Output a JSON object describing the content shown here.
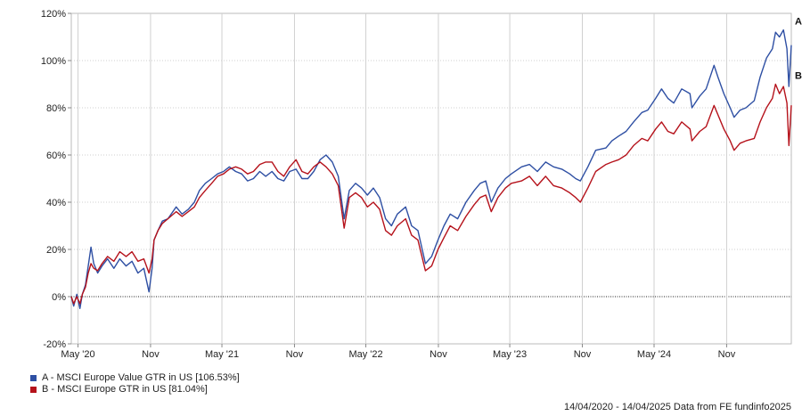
{
  "chart_data": {
    "type": "line",
    "xlabel": "",
    "ylabel": "",
    "ylim": [
      -20,
      120
    ],
    "y_ticks": [
      -20,
      0,
      20,
      40,
      60,
      80,
      100,
      120
    ],
    "y_tick_labels": [
      "-20%",
      "0%",
      "20%",
      "40%",
      "60%",
      "80%",
      "100%",
      "120%"
    ],
    "x_range": [
      "2020-04-14",
      "2025-04-14"
    ],
    "x_ticks": [
      {
        "date": "2020-05-01",
        "label": "May '20"
      },
      {
        "date": "2020-11-01",
        "label": "Nov"
      },
      {
        "date": "2021-05-01",
        "label": "May '21"
      },
      {
        "date": "2021-11-01",
        "label": "Nov"
      },
      {
        "date": "2022-05-01",
        "label": "May '22"
      },
      {
        "date": "2022-11-01",
        "label": "Nov"
      },
      {
        "date": "2023-05-01",
        "label": "May '23"
      },
      {
        "date": "2023-11-01",
        "label": "Nov"
      },
      {
        "date": "2024-05-01",
        "label": "May '24"
      },
      {
        "date": "2024-11-01",
        "label": "Nov"
      }
    ],
    "grid": true,
    "zero_line": true,
    "legend_position": "bottom-left",
    "series": [
      {
        "name": "A - MSCI Europe Value GTR in US [106.53%]",
        "end_label": "A",
        "color": "#2e4fa3",
        "points": [
          [
            "2020-04-14",
            0
          ],
          [
            "2020-04-20",
            -4
          ],
          [
            "2020-04-28",
            1
          ],
          [
            "2020-05-06",
            -5
          ],
          [
            "2020-05-12",
            1
          ],
          [
            "2020-05-20",
            5
          ],
          [
            "2020-05-27",
            13
          ],
          [
            "2020-06-03",
            21
          ],
          [
            "2020-06-10",
            14
          ],
          [
            "2020-06-20",
            10
          ],
          [
            "2020-07-01",
            13
          ],
          [
            "2020-07-15",
            16
          ],
          [
            "2020-07-31",
            12
          ],
          [
            "2020-08-15",
            16
          ],
          [
            "2020-08-31",
            13
          ],
          [
            "2020-09-15",
            15
          ],
          [
            "2020-09-30",
            10
          ],
          [
            "2020-10-15",
            12
          ],
          [
            "2020-10-28",
            2
          ],
          [
            "2020-11-05",
            12
          ],
          [
            "2020-11-10",
            24
          ],
          [
            "2020-11-20",
            28
          ],
          [
            "2020-12-01",
            32
          ],
          [
            "2020-12-15",
            33
          ],
          [
            "2021-01-05",
            38
          ],
          [
            "2021-01-20",
            35
          ],
          [
            "2021-02-05",
            37
          ],
          [
            "2021-02-20",
            40
          ],
          [
            "2021-03-05",
            45
          ],
          [
            "2021-03-20",
            48
          ],
          [
            "2021-04-05",
            50
          ],
          [
            "2021-04-20",
            52
          ],
          [
            "2021-05-05",
            53
          ],
          [
            "2021-05-20",
            55
          ],
          [
            "2021-06-05",
            53
          ],
          [
            "2021-06-20",
            52
          ],
          [
            "2021-07-05",
            49
          ],
          [
            "2021-07-20",
            50
          ],
          [
            "2021-08-05",
            53
          ],
          [
            "2021-08-20",
            51
          ],
          [
            "2021-09-05",
            53
          ],
          [
            "2021-09-20",
            50
          ],
          [
            "2021-10-05",
            49
          ],
          [
            "2021-10-20",
            53
          ],
          [
            "2021-11-05",
            54
          ],
          [
            "2021-11-20",
            50
          ],
          [
            "2021-12-05",
            50
          ],
          [
            "2021-12-20",
            53
          ],
          [
            "2022-01-05",
            58
          ],
          [
            "2022-01-20",
            60
          ],
          [
            "2022-02-05",
            57
          ],
          [
            "2022-02-20",
            51
          ],
          [
            "2022-03-07",
            33
          ],
          [
            "2022-03-20",
            45
          ],
          [
            "2022-04-05",
            48
          ],
          [
            "2022-04-20",
            46
          ],
          [
            "2022-05-05",
            43
          ],
          [
            "2022-05-20",
            46
          ],
          [
            "2022-06-05",
            42
          ],
          [
            "2022-06-20",
            33
          ],
          [
            "2022-07-05",
            30
          ],
          [
            "2022-07-20",
            35
          ],
          [
            "2022-08-10",
            38
          ],
          [
            "2022-08-25",
            30
          ],
          [
            "2022-09-10",
            28
          ],
          [
            "2022-09-29",
            14
          ],
          [
            "2022-10-15",
            17
          ],
          [
            "2022-10-31",
            24
          ],
          [
            "2022-11-15",
            30
          ],
          [
            "2022-12-01",
            35
          ],
          [
            "2022-12-20",
            33
          ],
          [
            "2023-01-10",
            40
          ],
          [
            "2023-01-31",
            45
          ],
          [
            "2023-02-15",
            48
          ],
          [
            "2023-03-01",
            49
          ],
          [
            "2023-03-15",
            40
          ],
          [
            "2023-04-01",
            46
          ],
          [
            "2023-04-20",
            50
          ],
          [
            "2023-05-05",
            52
          ],
          [
            "2023-05-31",
            55
          ],
          [
            "2023-06-20",
            56
          ],
          [
            "2023-07-10",
            53
          ],
          [
            "2023-07-31",
            57
          ],
          [
            "2023-08-20",
            55
          ],
          [
            "2023-09-10",
            54
          ],
          [
            "2023-09-30",
            52
          ],
          [
            "2023-10-15",
            50
          ],
          [
            "2023-10-27",
            49
          ],
          [
            "2023-11-15",
            55
          ],
          [
            "2023-12-05",
            62
          ],
          [
            "2023-12-31",
            63
          ],
          [
            "2024-01-15",
            66
          ],
          [
            "2024-02-01",
            68
          ],
          [
            "2024-02-20",
            70
          ],
          [
            "2024-03-10",
            74
          ],
          [
            "2024-03-31",
            78
          ],
          [
            "2024-04-15",
            79
          ],
          [
            "2024-05-05",
            84
          ],
          [
            "2024-05-20",
            88
          ],
          [
            "2024-06-05",
            84
          ],
          [
            "2024-06-20",
            82
          ],
          [
            "2024-07-10",
            88
          ],
          [
            "2024-07-31",
            86
          ],
          [
            "2024-08-05",
            80
          ],
          [
            "2024-08-25",
            85
          ],
          [
            "2024-09-10",
            88
          ],
          [
            "2024-09-30",
            98
          ],
          [
            "2024-10-10",
            93
          ],
          [
            "2024-10-25",
            86
          ],
          [
            "2024-11-10",
            80
          ],
          [
            "2024-11-20",
            76
          ],
          [
            "2024-12-05",
            79
          ],
          [
            "2024-12-20",
            80
          ],
          [
            "2025-01-10",
            83
          ],
          [
            "2025-01-25",
            93
          ],
          [
            "2025-02-10",
            101
          ],
          [
            "2025-02-25",
            105
          ],
          [
            "2025-03-05",
            112
          ],
          [
            "2025-03-15",
            110
          ],
          [
            "2025-03-25",
            113
          ],
          [
            "2025-04-03",
            105
          ],
          [
            "2025-04-08",
            89
          ],
          [
            "2025-04-14",
            106.53
          ]
        ]
      },
      {
        "name": "B - MSCI Europe GTR in US [81.04%]",
        "end_label": "B",
        "color": "#b5121b",
        "points": [
          [
            "2020-04-14",
            0
          ],
          [
            "2020-04-20",
            -3
          ],
          [
            "2020-04-28",
            0
          ],
          [
            "2020-05-06",
            -3
          ],
          [
            "2020-05-12",
            1
          ],
          [
            "2020-05-20",
            4
          ],
          [
            "2020-05-27",
            10
          ],
          [
            "2020-06-03",
            14
          ],
          [
            "2020-06-10",
            12
          ],
          [
            "2020-06-20",
            11
          ],
          [
            "2020-07-01",
            14
          ],
          [
            "2020-07-15",
            17
          ],
          [
            "2020-07-31",
            15
          ],
          [
            "2020-08-15",
            19
          ],
          [
            "2020-08-31",
            17
          ],
          [
            "2020-09-15",
            19
          ],
          [
            "2020-09-30",
            15
          ],
          [
            "2020-10-15",
            16
          ],
          [
            "2020-10-28",
            10
          ],
          [
            "2020-11-05",
            16
          ],
          [
            "2020-11-10",
            24
          ],
          [
            "2020-11-20",
            28
          ],
          [
            "2020-12-01",
            31
          ],
          [
            "2020-12-15",
            33
          ],
          [
            "2021-01-05",
            36
          ],
          [
            "2021-01-20",
            34
          ],
          [
            "2021-02-05",
            36
          ],
          [
            "2021-02-20",
            38
          ],
          [
            "2021-03-05",
            42
          ],
          [
            "2021-03-20",
            45
          ],
          [
            "2021-04-05",
            48
          ],
          [
            "2021-04-20",
            51
          ],
          [
            "2021-05-05",
            52
          ],
          [
            "2021-05-20",
            54
          ],
          [
            "2021-06-05",
            55
          ],
          [
            "2021-06-20",
            54
          ],
          [
            "2021-07-05",
            52
          ],
          [
            "2021-07-20",
            53
          ],
          [
            "2021-08-05",
            56
          ],
          [
            "2021-08-20",
            57
          ],
          [
            "2021-09-05",
            57
          ],
          [
            "2021-09-20",
            53
          ],
          [
            "2021-10-05",
            51
          ],
          [
            "2021-10-20",
            55
          ],
          [
            "2021-11-05",
            58
          ],
          [
            "2021-11-20",
            53
          ],
          [
            "2021-12-05",
            52
          ],
          [
            "2021-12-20",
            55
          ],
          [
            "2022-01-05",
            57
          ],
          [
            "2022-01-20",
            55
          ],
          [
            "2022-02-05",
            52
          ],
          [
            "2022-02-20",
            47
          ],
          [
            "2022-03-07",
            29
          ],
          [
            "2022-03-20",
            42
          ],
          [
            "2022-04-05",
            44
          ],
          [
            "2022-04-20",
            42
          ],
          [
            "2022-05-05",
            38
          ],
          [
            "2022-05-20",
            40
          ],
          [
            "2022-06-05",
            37
          ],
          [
            "2022-06-20",
            28
          ],
          [
            "2022-07-05",
            26
          ],
          [
            "2022-07-20",
            30
          ],
          [
            "2022-08-10",
            33
          ],
          [
            "2022-08-25",
            26
          ],
          [
            "2022-09-10",
            24
          ],
          [
            "2022-09-29",
            11
          ],
          [
            "2022-10-15",
            13
          ],
          [
            "2022-10-31",
            20
          ],
          [
            "2022-11-15",
            25
          ],
          [
            "2022-12-01",
            30
          ],
          [
            "2022-12-20",
            28
          ],
          [
            "2023-01-10",
            34
          ],
          [
            "2023-01-31",
            39
          ],
          [
            "2023-02-15",
            42
          ],
          [
            "2023-03-01",
            43
          ],
          [
            "2023-03-15",
            36
          ],
          [
            "2023-04-01",
            42
          ],
          [
            "2023-04-20",
            46
          ],
          [
            "2023-05-05",
            48
          ],
          [
            "2023-05-31",
            49
          ],
          [
            "2023-06-20",
            51
          ],
          [
            "2023-07-10",
            47
          ],
          [
            "2023-07-31",
            51
          ],
          [
            "2023-08-20",
            47
          ],
          [
            "2023-09-10",
            46
          ],
          [
            "2023-09-30",
            44
          ],
          [
            "2023-10-15",
            42
          ],
          [
            "2023-10-27",
            40
          ],
          [
            "2023-11-15",
            46
          ],
          [
            "2023-12-05",
            53
          ],
          [
            "2023-12-31",
            56
          ],
          [
            "2024-01-15",
            57
          ],
          [
            "2024-02-01",
            58
          ],
          [
            "2024-02-20",
            60
          ],
          [
            "2024-03-10",
            64
          ],
          [
            "2024-03-31",
            67
          ],
          [
            "2024-04-15",
            66
          ],
          [
            "2024-05-05",
            71
          ],
          [
            "2024-05-20",
            74
          ],
          [
            "2024-06-05",
            70
          ],
          [
            "2024-06-20",
            69
          ],
          [
            "2024-07-10",
            74
          ],
          [
            "2024-07-31",
            71
          ],
          [
            "2024-08-05",
            66
          ],
          [
            "2024-08-25",
            70
          ],
          [
            "2024-09-10",
            72
          ],
          [
            "2024-09-30",
            81
          ],
          [
            "2024-10-10",
            77
          ],
          [
            "2024-10-25",
            71
          ],
          [
            "2024-11-10",
            66
          ],
          [
            "2024-11-20",
            62
          ],
          [
            "2024-12-05",
            65
          ],
          [
            "2024-12-20",
            66
          ],
          [
            "2025-01-10",
            67
          ],
          [
            "2025-01-25",
            74
          ],
          [
            "2025-02-10",
            80
          ],
          [
            "2025-02-25",
            84
          ],
          [
            "2025-03-05",
            90
          ],
          [
            "2025-03-15",
            86
          ],
          [
            "2025-03-25",
            89
          ],
          [
            "2025-04-03",
            82
          ],
          [
            "2025-04-08",
            64
          ],
          [
            "2025-04-14",
            81.04
          ]
        ]
      }
    ]
  },
  "legend": {
    "items": [
      {
        "label": "A - MSCI Europe Value GTR in US [106.53%]",
        "color": "#2e4fa3"
      },
      {
        "label": "B - MSCI Europe GTR in US [81.04%]",
        "color": "#b5121b"
      }
    ]
  },
  "footer": {
    "text": "14/04/2020 - 14/04/2025 Data from FE fundinfo2025"
  }
}
